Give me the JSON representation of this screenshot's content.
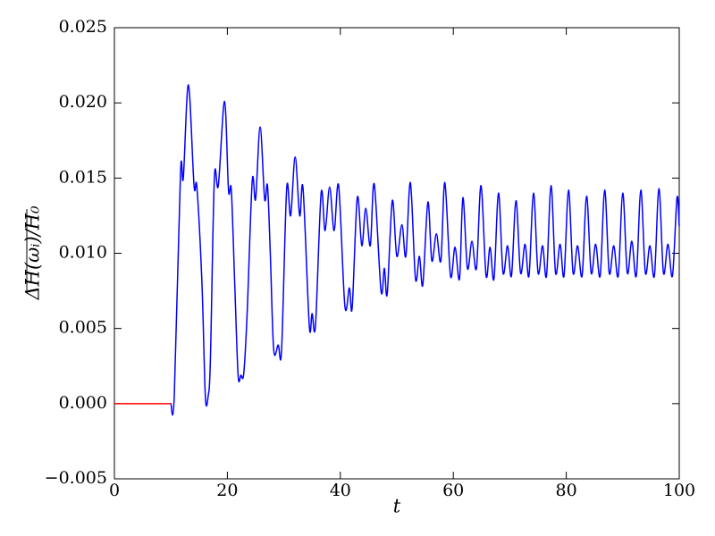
{
  "chart_data": {
    "type": "line",
    "xlabel": "t",
    "ylabel": "ΔH(ωᵢ)/H₀",
    "xlim": [
      0,
      100
    ],
    "xticks": [
      0,
      20,
      40,
      60,
      80,
      100
    ],
    "ylim": [
      -0.005,
      0.025
    ],
    "yticks": [
      {
        "value": -0.005,
        "label": "−0.005"
      },
      {
        "value": 0,
        "label": "0.000"
      },
      {
        "value": 0.005,
        "label": "0.005"
      },
      {
        "value": 0.01,
        "label": "0.010"
      },
      {
        "value": 0.015,
        "label": "0.015"
      },
      {
        "value": 0.02,
        "label": "0.020"
      },
      {
        "value": 0.025,
        "label": "0.025"
      }
    ],
    "grid": false,
    "series": [
      {
        "color": "#ff0000",
        "x": [
          0,
          10
        ],
        "values": [
          0,
          0
        ]
      },
      {
        "color": "#0000ff",
        "x": [
          10,
          10.6,
          11.7,
          12.2,
          13.1,
          14.1,
          14.6,
          15.5,
          16.1,
          16.6,
          17.0,
          17.7,
          18.4,
          19.5,
          20.2,
          20.7,
          21.3,
          21.9,
          22.4,
          22.9,
          23.5,
          24.4,
          25.0,
          25.8,
          26.6,
          27.1,
          27.6,
          28.2,
          29.0,
          29.6,
          30.5,
          31.2,
          32.0,
          32.8,
          33.4,
          34.5,
          35.0,
          35.6,
          36.6,
          37.3,
          38.1,
          38.9,
          39.7,
          40.8,
          41.6,
          42.1,
          43.0,
          43.8,
          44.5,
          45.3,
          46.0,
          47.2,
          47.8,
          48.3,
          49.2,
          50.0,
          50.9,
          51.6,
          52.4,
          53.3,
          54.0,
          54.6,
          55.5,
          56.2,
          57.0,
          57.8,
          58.5,
          59.5,
          60.3,
          61.1,
          61.7,
          62.5,
          63.3,
          64.1,
          64.9,
          65.8,
          66.5,
          67.2,
          68.0,
          68.8,
          69.6,
          70.3,
          71.1,
          71.9,
          72.7,
          73.4,
          74.2,
          75.0,
          75.8,
          76.5,
          77.3,
          78.1,
          78.9,
          79.6,
          80.4,
          81.2,
          82.0,
          82.8,
          83.6,
          84.4,
          85.2,
          86.0,
          86.8,
          87.6,
          88.4,
          89.2,
          90.0,
          90.8,
          91.6,
          92.4,
          93.2,
          94.0,
          94.8,
          95.6,
          96.4,
          97.2,
          98.0,
          98.8,
          99.6,
          100
        ],
        "values": [
          0,
          0.0005,
          0.0153,
          0.015,
          0.0212,
          0.0145,
          0.0144,
          0.008,
          0.0005,
          0.0005,
          0.003,
          0.015,
          0.0145,
          0.0201,
          0.0142,
          0.0142,
          0.008,
          0.0019,
          0.0019,
          0.002,
          0.006,
          0.0148,
          0.0136,
          0.0184,
          0.0136,
          0.0145,
          0.01,
          0.0036,
          0.0039,
          0.0036,
          0.0143,
          0.0125,
          0.0164,
          0.0125,
          0.0143,
          0.0052,
          0.006,
          0.0052,
          0.014,
          0.0115,
          0.0144,
          0.0115,
          0.0145,
          0.0065,
          0.0077,
          0.0064,
          0.0137,
          0.0105,
          0.013,
          0.0105,
          0.0146,
          0.0075,
          0.009,
          0.0073,
          0.0135,
          0.0098,
          0.0119,
          0.0098,
          0.0147,
          0.0083,
          0.0098,
          0.0079,
          0.0134,
          0.0095,
          0.0113,
          0.0095,
          0.0147,
          0.0085,
          0.0104,
          0.0083,
          0.0137,
          0.009,
          0.0108,
          0.009,
          0.0145,
          0.0085,
          0.0104,
          0.0083,
          0.014,
          0.0087,
          0.0105,
          0.0085,
          0.0135,
          0.0087,
          0.0106,
          0.0085,
          0.014,
          0.0087,
          0.0105,
          0.0085,
          0.0145,
          0.0087,
          0.0106,
          0.0085,
          0.0142,
          0.0087,
          0.0105,
          0.0085,
          0.0138,
          0.0087,
          0.0106,
          0.0085,
          0.0142,
          0.0087,
          0.0105,
          0.0085,
          0.014,
          0.0087,
          0.0108,
          0.0085,
          0.0142,
          0.0087,
          0.0105,
          0.0085,
          0.0143,
          0.0087,
          0.0106,
          0.0085,
          0.0137,
          0.0118
        ]
      }
    ]
  }
}
